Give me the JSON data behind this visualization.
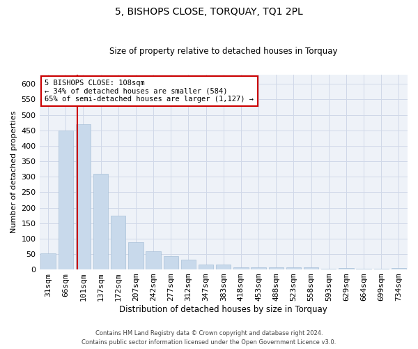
{
  "title": "5, BISHOPS CLOSE, TORQUAY, TQ1 2PL",
  "subtitle": "Size of property relative to detached houses in Torquay",
  "xlabel": "Distribution of detached houses by size in Torquay",
  "ylabel": "Number of detached properties",
  "categories": [
    "31sqm",
    "66sqm",
    "101sqm",
    "137sqm",
    "172sqm",
    "207sqm",
    "242sqm",
    "277sqm",
    "312sqm",
    "347sqm",
    "383sqm",
    "418sqm",
    "453sqm",
    "488sqm",
    "523sqm",
    "558sqm",
    "593sqm",
    "629sqm",
    "664sqm",
    "699sqm",
    "734sqm"
  ],
  "values": [
    52,
    450,
    470,
    310,
    175,
    88,
    58,
    44,
    31,
    15,
    15,
    8,
    8,
    8,
    6,
    6,
    3,
    4,
    3,
    3,
    4
  ],
  "bar_color": "#c8d9eb",
  "bar_edge_color": "#a8c0d8",
  "grid_color": "#d0d8e8",
  "bg_color": "#eef2f8",
  "annotation_text": "5 BISHOPS CLOSE: 108sqm\n← 34% of detached houses are smaller (584)\n65% of semi-detached houses are larger (1,127) →",
  "annotation_box_color": "#ffffff",
  "annotation_box_edge_color": "#cc0000",
  "property_line_color": "#cc0000",
  "ylim": [
    0,
    630
  ],
  "yticks": [
    0,
    50,
    100,
    150,
    200,
    250,
    300,
    350,
    400,
    450,
    500,
    550,
    600
  ],
  "footer1": "Contains HM Land Registry data © Crown copyright and database right 2024.",
  "footer2": "Contains public sector information licensed under the Open Government Licence v3.0."
}
